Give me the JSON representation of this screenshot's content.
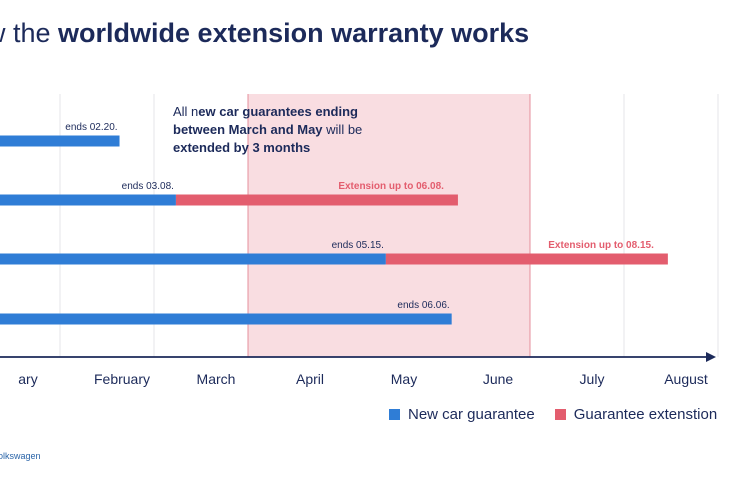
{
  "title": {
    "prefix": "w the ",
    "bold": "worldwide extension warranty works"
  },
  "credit": "olkswagen",
  "colors": {
    "guarantee": "#2f7dd6",
    "extension": "#e35d6e",
    "band": "#f9dde1",
    "band_border": "#e58f9c",
    "axis": "#1c2a5a",
    "grid": "#e6e6ea",
    "text": "#1c2a5a"
  },
  "chart_data": {
    "type": "bar",
    "orientation": "horizontal-timeline",
    "x_ticks": [
      "ary",
      "February",
      "March",
      "April",
      "May",
      "June",
      "July",
      "August"
    ],
    "highlight_band": {
      "from": "March",
      "to": "May",
      "note_prefix": "All n",
      "note_bold_1": "ew car guarantees ending",
      "note_bold_2": "between March and May",
      "note_rest": " will be",
      "note_bold_3": "extended by 3 months"
    },
    "series": [
      {
        "name": "New car guarantee",
        "color": "#2f7dd6"
      },
      {
        "name": "Guarantee extenstion",
        "color": "#e35d6e"
      }
    ],
    "rows": [
      {
        "guarantee_end": "02.20",
        "guarantee_label": "ends 02.20.",
        "extension_end": null,
        "extension_label": null
      },
      {
        "guarantee_end": "03.08",
        "guarantee_label": "ends 03.08.",
        "extension_end": "06.08",
        "extension_label": "Extension up to 06.08."
      },
      {
        "guarantee_end": "05.15",
        "guarantee_label": "ends 05.15.",
        "extension_end": "08.15",
        "extension_label": "Extension up to 08.15."
      },
      {
        "guarantee_end": "06.06",
        "guarantee_label": "ends 06.06.",
        "extension_end": null,
        "extension_label": null
      }
    ],
    "grid": true,
    "legend": "bottom-right"
  }
}
